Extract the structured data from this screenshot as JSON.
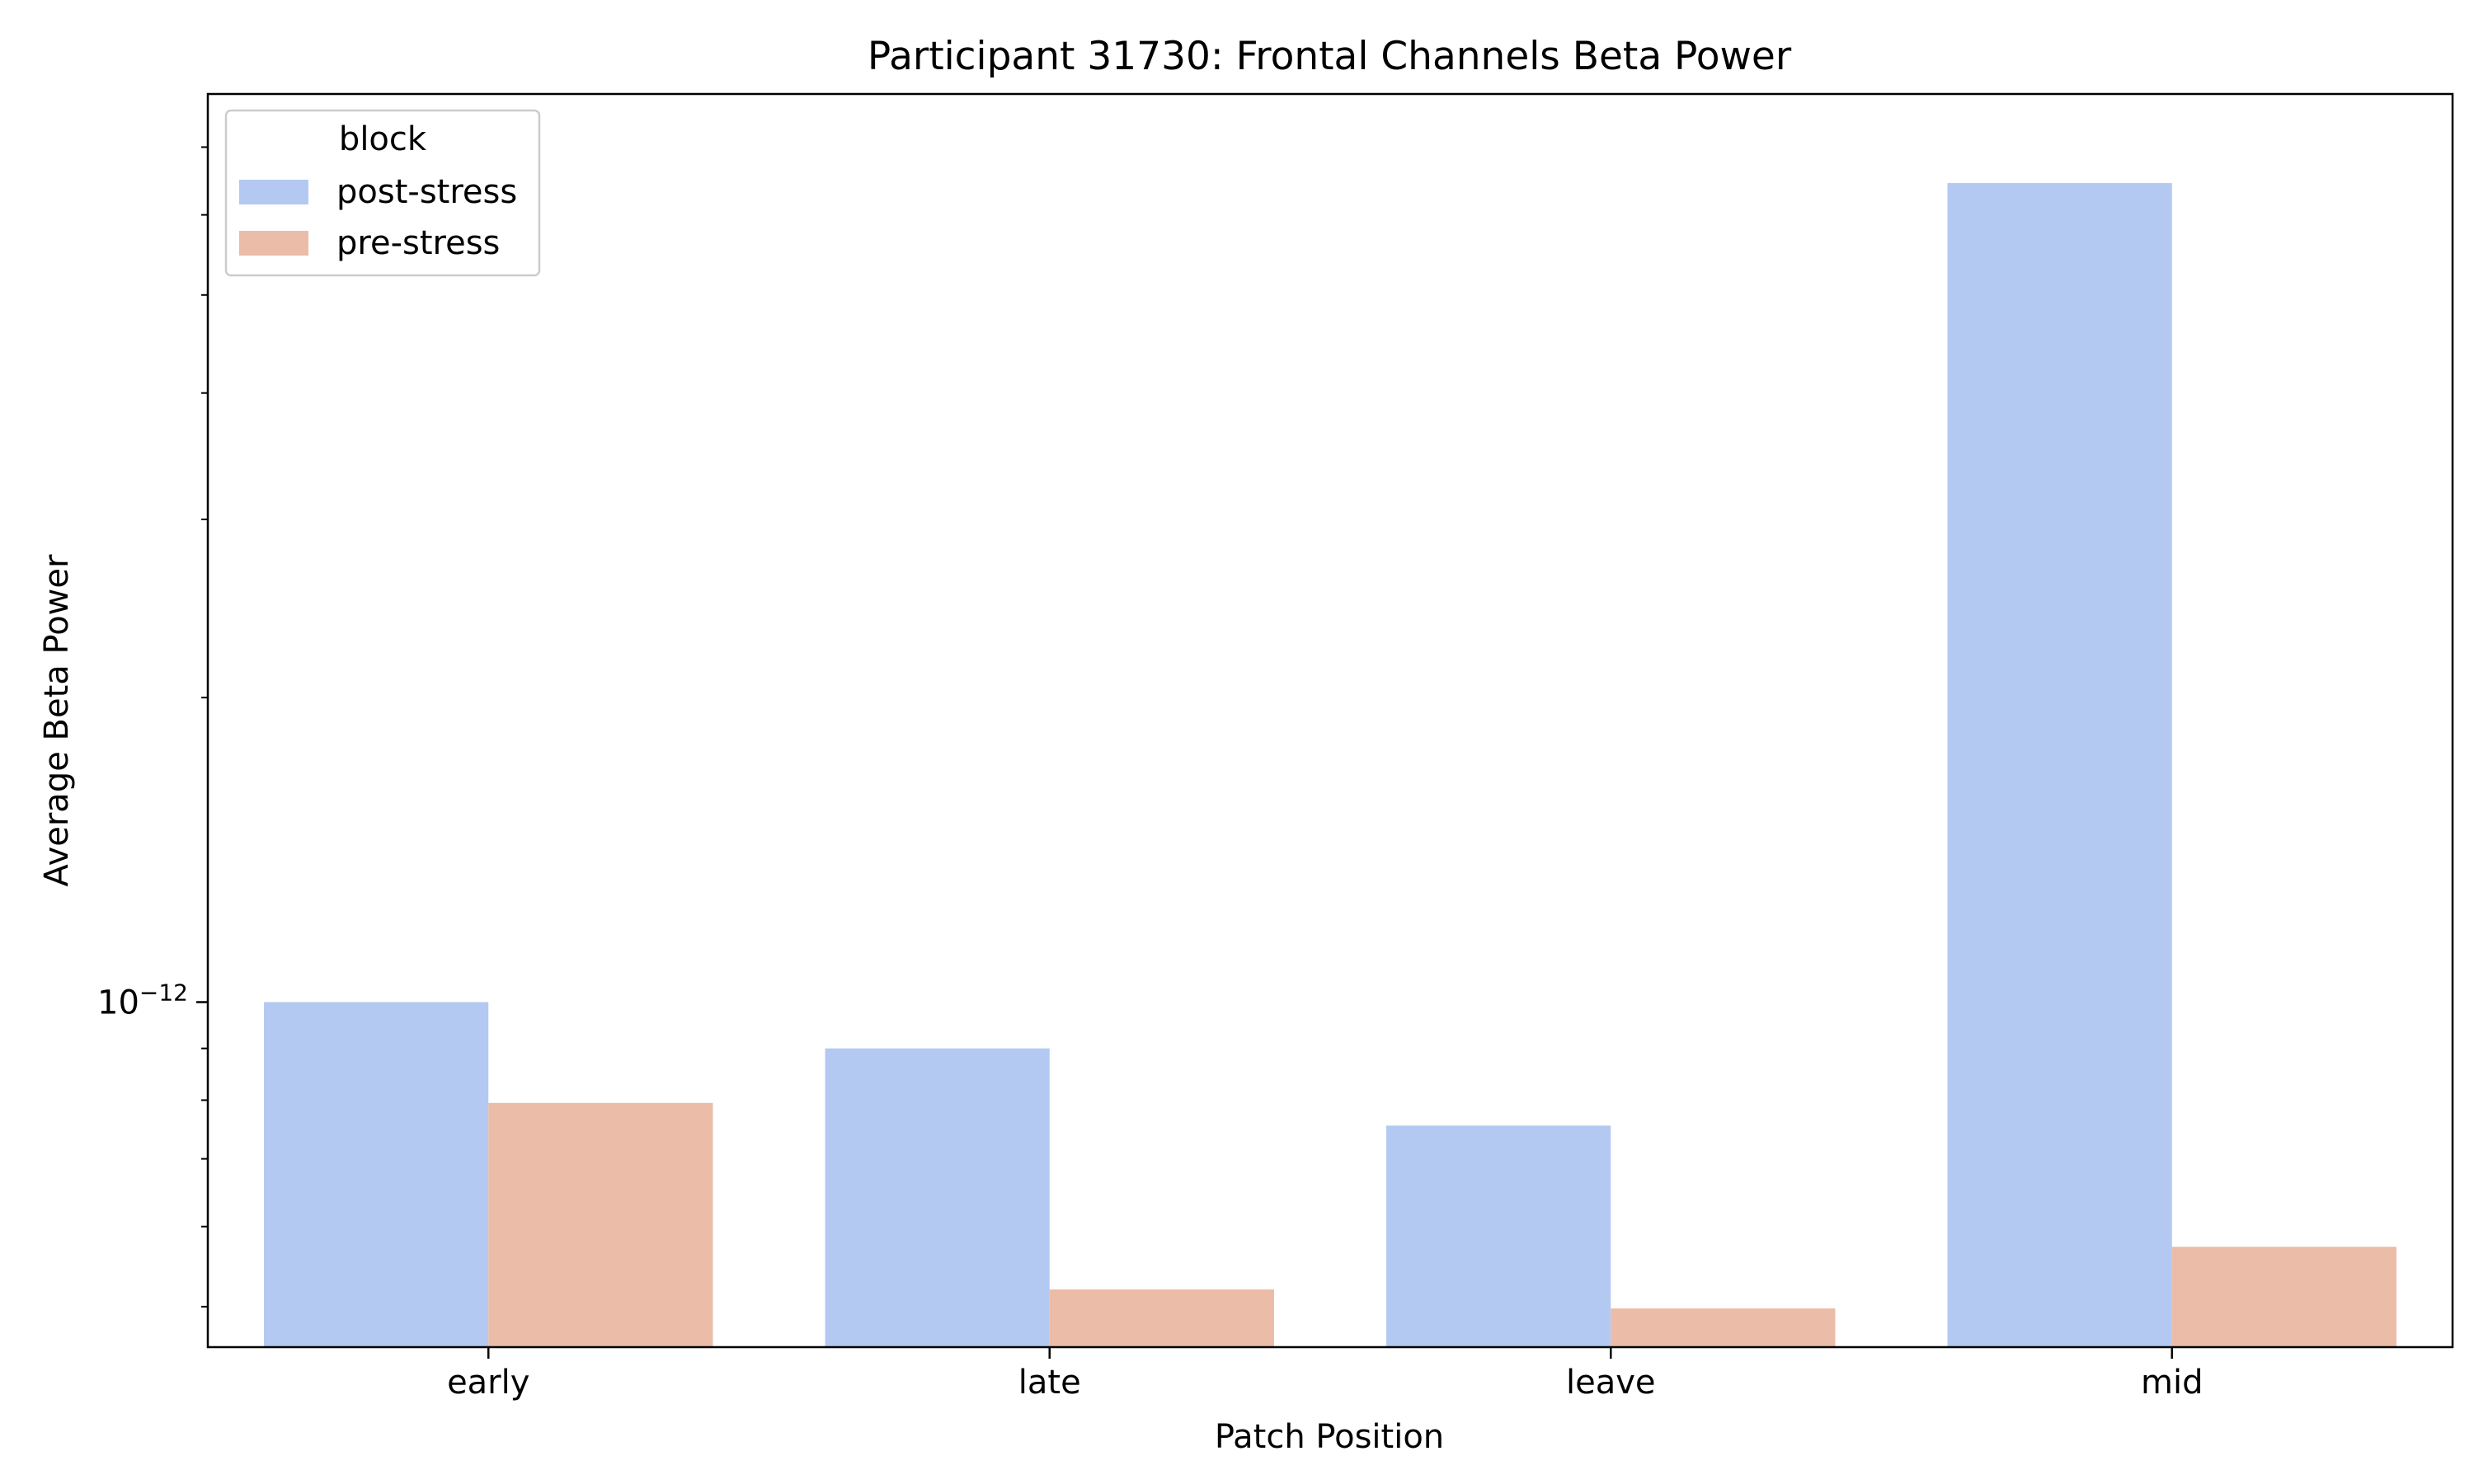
{
  "chart_data": {
    "type": "bar",
    "title": "Participant 31730: Frontal Channels Beta Power",
    "xlabel": "Patch Position",
    "ylabel": "Average Beta Power",
    "yscale": "log",
    "ylim": [
      4.56e-13,
      7.9e-12
    ],
    "y_major_ticks": [
      1e-12
    ],
    "y_major_tick_labels": [
      {
        "base": "10",
        "exponent": "−12"
      }
    ],
    "y_minor_ticks": [
      5e-13,
      6e-13,
      7e-13,
      8e-13,
      9e-13,
      2e-12,
      3e-12,
      4e-12,
      5e-12,
      6e-12,
      7e-12
    ],
    "categories": [
      "early",
      "late",
      "leave",
      "mid"
    ],
    "series": [
      {
        "name": "post-stress",
        "color": "#b3c9f2",
        "values": [
          1e-12,
          9e-13,
          7.55e-13,
          6.45e-12
        ]
      },
      {
        "name": "pre-stress",
        "color": "#ebbca7",
        "values": [
          7.95e-13,
          5.2e-13,
          4.98e-13,
          5.73e-13
        ]
      }
    ],
    "legend": {
      "title": "block",
      "position": "top-left"
    },
    "grid": false
  }
}
